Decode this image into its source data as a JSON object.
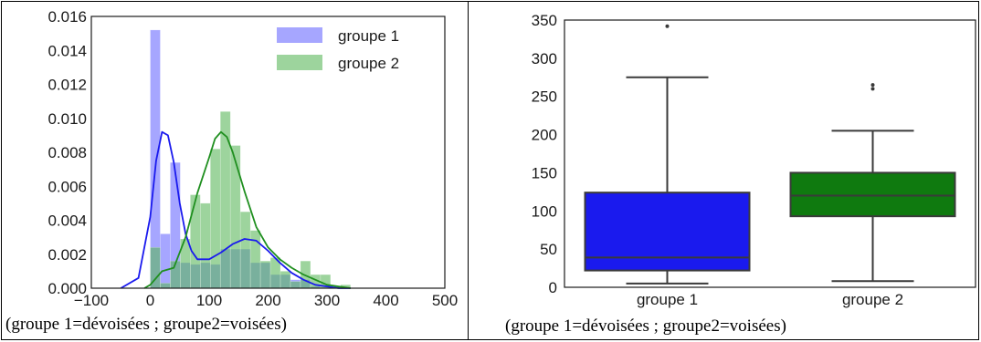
{
  "chart_data": [
    {
      "type": "histogram",
      "colors": {
        "groupe 1": "#6a6aff",
        "groupe 2": "#5cb85c",
        "kde groupe 1": "#1a1aee",
        "kde groupe 2": "#1f8f1f"
      },
      "xlim": [
        -100,
        500
      ],
      "ylim": [
        0,
        0.016
      ],
      "x_ticks": [
        "-100",
        "0",
        "100",
        "200",
        "300",
        "400",
        "500"
      ],
      "y_ticks": [
        "0.000",
        "0.002",
        "0.004",
        "0.006",
        "0.008",
        "0.010",
        "0.012",
        "0.014",
        "0.016"
      ],
      "legend_position": "top-right",
      "series": [
        {
          "name": "groupe 1",
          "bin_edges": [
            0,
            17,
            34,
            51,
            68,
            85,
            102,
            119,
            136,
            153,
            170,
            187,
            204,
            221,
            238,
            255,
            272,
            289
          ],
          "density": [
            0.0152,
            0.0032,
            0.0074,
            0.0015,
            0.0014,
            0.0015,
            0.0014,
            0.0023,
            0.0023,
            0.0023,
            0.0015,
            0.0015,
            0.0008,
            0.0008,
            0.0005,
            0.0005,
            0.0001
          ]
        },
        {
          "name": "groupe 2",
          "bin_edges": [
            0,
            17,
            34,
            51,
            68,
            85,
            102,
            119,
            136,
            153,
            170,
            187,
            204,
            221,
            238,
            255,
            272,
            289,
            306,
            323,
            340
          ],
          "density": [
            0.0024,
            0.0003,
            0.0016,
            0.0029,
            0.0055,
            0.005,
            0.0082,
            0.0104,
            0.0084,
            0.0045,
            0.0034,
            0.0016,
            0.0018,
            0.001,
            0.0004,
            0.0016,
            0.0008,
            0.0008,
            0.0001,
            0.0002
          ]
        }
      ],
      "kde": [
        {
          "name": "groupe 1",
          "x": [
            -50,
            -20,
            0,
            10,
            20,
            30,
            40,
            50,
            60,
            70,
            80,
            100,
            120,
            140,
            160,
            180,
            200,
            220,
            240,
            260,
            280,
            300,
            320,
            340
          ],
          "y": [
            0.0,
            0.0006,
            0.0042,
            0.0075,
            0.0092,
            0.009,
            0.0074,
            0.005,
            0.0032,
            0.0022,
            0.0017,
            0.0017,
            0.0021,
            0.0026,
            0.0029,
            0.0028,
            0.0022,
            0.0015,
            0.0009,
            0.0005,
            0.0002,
            0.0001,
            0.0,
            0.0
          ]
        },
        {
          "name": "groupe 2",
          "x": [
            -10,
            0,
            20,
            40,
            60,
            80,
            100,
            110,
            120,
            130,
            140,
            160,
            180,
            200,
            220,
            240,
            260,
            280,
            300,
            320,
            340
          ],
          "y": [
            0.0,
            0.0002,
            0.001,
            0.0012,
            0.003,
            0.0056,
            0.0077,
            0.0088,
            0.0092,
            0.0089,
            0.008,
            0.0057,
            0.0036,
            0.0024,
            0.0017,
            0.0012,
            0.0008,
            0.0005,
            0.0002,
            0.0001,
            0.0
          ]
        }
      ]
    },
    {
      "type": "boxplot",
      "categories": [
        "groupe 1",
        "groupe 2"
      ],
      "ylim": [
        0,
        350
      ],
      "y_ticks": [
        "0",
        "50",
        "100",
        "150",
        "200",
        "250",
        "300",
        "350"
      ],
      "colors": {
        "groupe 1": "#1a1aee",
        "groupe 2": "#0f7a0f"
      },
      "boxes": [
        {
          "name": "groupe 1",
          "whisker_low": 5,
          "q1": 22,
          "median": 39,
          "q3": 124,
          "whisker_high": 275,
          "outliers": [
            342
          ]
        },
        {
          "name": "groupe 2",
          "whisker_low": 8,
          "q1": 93,
          "median": 120,
          "q3": 150,
          "whisker_high": 205,
          "outliers": [
            260,
            265
          ]
        }
      ]
    }
  ],
  "captions": {
    "left": "(groupe 1=dévoisées ; groupe2=voisées)",
    "right": "(groupe 1=dévoisées ; groupe2=voisées)"
  }
}
